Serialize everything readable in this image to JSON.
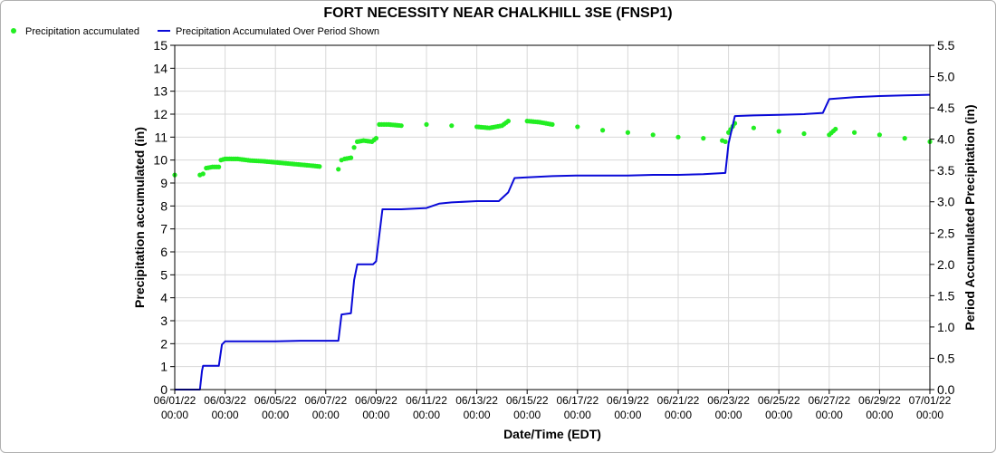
{
  "chart_data": {
    "type": "line",
    "title": "FORT NECESSITY NEAR CHALKHILL 3SE (FNSP1)",
    "xlabel": "Date/Time (EDT)",
    "ylabel_left": "Precipitation accumulated (in)",
    "ylabel_right": "Period Accumulated Precipitation (in)",
    "ylim_left": [
      0,
      15
    ],
    "ylim_right": [
      0,
      5.5
    ],
    "yticks_left": [
      "0",
      "1",
      "2",
      "3",
      "4",
      "5",
      "6",
      "7",
      "8",
      "9",
      "10",
      "11",
      "12",
      "13",
      "14",
      "15"
    ],
    "yticks_right": [
      "0.0",
      "0.5",
      "1.0",
      "1.5",
      "2.0",
      "2.5",
      "3.0",
      "3.5",
      "4.0",
      "4.5",
      "5.0",
      "5.5"
    ],
    "xlim": [
      "06/01/22 00:00",
      "07/01/22 00:00"
    ],
    "x_ticks": [
      {
        "date": "06/01/22",
        "time": "00:00"
      },
      {
        "date": "06/03/22",
        "time": "00:00"
      },
      {
        "date": "06/05/22",
        "time": "00:00"
      },
      {
        "date": "06/07/22",
        "time": "00:00"
      },
      {
        "date": "06/09/22",
        "time": "00:00"
      },
      {
        "date": "06/11/22",
        "time": "00:00"
      },
      {
        "date": "06/13/22",
        "time": "00:00"
      },
      {
        "date": "06/15/22",
        "time": "00:00"
      },
      {
        "date": "06/17/22",
        "time": "00:00"
      },
      {
        "date": "06/19/22",
        "time": "00:00"
      },
      {
        "date": "06/21/22",
        "time": "00:00"
      },
      {
        "date": "06/23/22",
        "time": "00:00"
      },
      {
        "date": "06/25/22",
        "time": "00:00"
      },
      {
        "date": "06/27/22",
        "time": "00:00"
      },
      {
        "date": "06/29/22",
        "time": "00:00"
      },
      {
        "date": "07/01/22",
        "time": "00:00"
      }
    ],
    "grid": true,
    "legend_position": "top-left",
    "series": [
      {
        "name": "Precipitation accumulated",
        "axis": "left",
        "style": "dots",
        "color": "#22ee22",
        "x": [
          "06/01/22 00:00",
          "06/02/22 00:00",
          "06/02/22 03:00",
          "06/02/22 06:00",
          "06/02/22 12:00",
          "06/02/22 18:00",
          "06/02/22 20:00",
          "06/03/22 00:00",
          "06/03/22 12:00",
          "06/04/22 00:00",
          "06/04/22 12:00",
          "06/05/22 00:00",
          "06/05/22 12:00",
          "06/06/22 00:00",
          "06/06/22 12:00",
          "06/06/22 18:00",
          "06/07/22 12:00",
          "06/07/22 15:00",
          "06/07/22 18:00",
          "06/08/22 00:00",
          "06/08/22 03:00",
          "06/08/22 06:00",
          "06/08/22 12:00",
          "06/08/22 20:00",
          "06/09/22 00:00",
          "06/09/22 03:00",
          "06/09/22 12:00",
          "06/10/22 00:00",
          "06/11/22 00:00",
          "06/12/22 00:00",
          "06/13/22 00:00",
          "06/13/22 12:00",
          "06/14/22 00:00",
          "06/14/22 06:00",
          "06/15/22 00:00",
          "06/15/22 12:00",
          "06/16/22 00:00",
          "06/17/22 00:00",
          "06/18/22 00:00",
          "06/19/22 00:00",
          "06/20/22 00:00",
          "06/21/22 00:00",
          "06/22/22 00:00",
          "06/22/22 18:00",
          "06/22/22 21:00",
          "06/23/22 00:00",
          "06/23/22 06:00",
          "06/24/22 00:00",
          "06/25/22 00:00",
          "06/26/22 00:00",
          "06/27/22 00:00",
          "06/27/22 06:00",
          "06/28/22 00:00",
          "06/29/22 00:00",
          "06/30/22 00:00",
          "07/01/22 00:00"
        ],
        "y": [
          9.35,
          9.35,
          9.4,
          9.65,
          9.7,
          9.7,
          10.0,
          10.05,
          10.05,
          9.98,
          9.95,
          9.9,
          9.85,
          9.8,
          9.75,
          9.72,
          9.6,
          10.0,
          10.05,
          10.1,
          10.55,
          10.8,
          10.85,
          10.8,
          10.95,
          11.55,
          11.55,
          11.5,
          11.55,
          11.5,
          11.45,
          11.4,
          11.5,
          11.7,
          11.7,
          11.65,
          11.55,
          11.45,
          11.3,
          11.2,
          11.1,
          11.0,
          10.95,
          10.85,
          10.8,
          11.2,
          11.6,
          11.4,
          11.25,
          11.15,
          11.1,
          11.35,
          11.2,
          11.1,
          10.95,
          10.8
        ]
      },
      {
        "name": "Precipitation Accumulated Over Period Shown",
        "axis": "right",
        "style": "line",
        "color": "#0a0ad8",
        "x": [
          "06/01/22 00:00",
          "06/02/22 00:00",
          "06/02/22 02:00",
          "06/02/22 03:00",
          "06/02/22 18:00",
          "06/02/22 21:00",
          "06/03/22 00:00",
          "06/04/22 00:00",
          "06/05/22 00:00",
          "06/06/22 00:00",
          "06/07/22 00:00",
          "06/07/22 12:00",
          "06/07/22 15:00",
          "06/08/22 00:00",
          "06/08/22 03:00",
          "06/08/22 06:00",
          "06/08/22 12:00",
          "06/08/22 21:00",
          "06/09/22 00:00",
          "06/09/22 06:00",
          "06/10/22 00:00",
          "06/11/22 00:00",
          "06/11/22 12:00",
          "06/12/22 00:00",
          "06/13/22 00:00",
          "06/13/22 21:00",
          "06/14/22 06:00",
          "06/14/22 12:00",
          "06/15/22 00:00",
          "06/16/22 00:00",
          "06/17/22 00:00",
          "06/18/22 00:00",
          "06/19/22 00:00",
          "06/20/22 00:00",
          "06/21/22 00:00",
          "06/22/22 00:00",
          "06/22/22 21:00",
          "06/23/22 00:00",
          "06/23/22 06:00",
          "06/24/22 00:00",
          "06/25/22 00:00",
          "06/26/22 00:00",
          "06/26/22 18:00",
          "06/27/22 00:00",
          "06/28/22 00:00",
          "06/29/22 00:00",
          "06/30/22 00:00",
          "07/01/22 00:00"
        ],
        "y": [
          0.0,
          0.0,
          0.3,
          0.38,
          0.38,
          0.72,
          0.77,
          0.77,
          0.77,
          0.78,
          0.78,
          0.78,
          1.2,
          1.22,
          1.75,
          2.0,
          2.0,
          2.0,
          2.05,
          2.88,
          2.88,
          2.9,
          2.97,
          2.99,
          3.01,
          3.01,
          3.15,
          3.38,
          3.39,
          3.41,
          3.42,
          3.42,
          3.42,
          3.43,
          3.43,
          3.44,
          3.46,
          3.93,
          4.37,
          4.38,
          4.39,
          4.4,
          4.42,
          4.64,
          4.67,
          4.69,
          4.7,
          4.71
        ]
      }
    ]
  }
}
